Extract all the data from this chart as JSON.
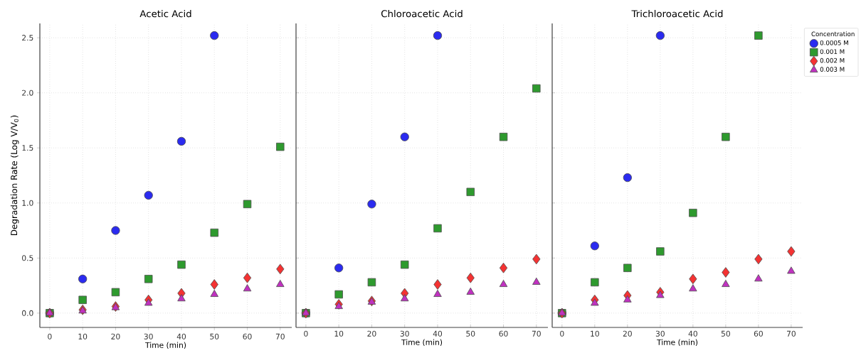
{
  "chart_data": [
    {
      "type": "scatter",
      "title": "Acetic Acid",
      "xlabel": "Time (min)",
      "ylabel": "Degradation Rate (Log V/V$_{0}$)",
      "x": [
        0,
        10,
        20,
        30,
        40,
        50,
        60,
        70
      ],
      "xlim": [
        -3,
        73.5
      ],
      "xticks": [
        0,
        10,
        20,
        30,
        40,
        50,
        60,
        70
      ],
      "ylim": [
        -0.13,
        2.63
      ],
      "yticks": [
        {
          "value": 0,
          "label": "0.0"
        },
        {
          "value": 0.5,
          "label": "0.5"
        },
        {
          "value": 1,
          "label": "1.0"
        },
        {
          "value": 1.5,
          "label": "1.5"
        },
        {
          "value": 2,
          "label": "2.0"
        },
        {
          "value": 2.5,
          "label": "2.5"
        }
      ],
      "grid": true,
      "series": [
        {
          "color": "#2b2bf0",
          "marker": "circle",
          "values": [
            0,
            0.31,
            0.75,
            1.07,
            1.56,
            2.52,
            null,
            null
          ]
        },
        {
          "color": "#2e9a2e",
          "marker": "square",
          "values": [
            0,
            0.12,
            0.19,
            0.31,
            0.44,
            0.73,
            0.99,
            1.51
          ]
        },
        {
          "color": "#f43232",
          "marker": "diamond",
          "values": [
            0,
            0.03,
            0.06,
            0.12,
            0.18,
            0.26,
            0.32,
            0.4
          ]
        },
        {
          "color": "#c031c0",
          "marker": "triangle",
          "values": [
            0,
            0.02,
            0.05,
            0.09,
            0.13,
            0.17,
            0.22,
            0.26
          ]
        }
      ]
    },
    {
      "type": "scatter",
      "title": "Chloroacetic Acid",
      "xlabel": "Time (min)",
      "x": [
        0,
        10,
        20,
        30,
        40,
        50,
        60,
        70
      ],
      "xlim": [
        -3,
        73.5
      ],
      "xticks": [
        0,
        10,
        20,
        30,
        40,
        50,
        60,
        70
      ],
      "ylim": [
        -0.13,
        2.63
      ],
      "yticks": [
        {
          "value": 0,
          "label": null
        },
        {
          "value": 0.5,
          "label": null
        },
        {
          "value": 1,
          "label": null
        },
        {
          "value": 1.5,
          "label": null
        },
        {
          "value": 2,
          "label": null
        },
        {
          "value": 2.5,
          "label": null
        }
      ],
      "grid": true,
      "tick_labels": "x",
      "series": [
        {
          "color": "#2b2bf0",
          "marker": "circle",
          "values": [
            0,
            0.41,
            0.99,
            1.6,
            2.52,
            null,
            null,
            null
          ]
        },
        {
          "color": "#2e9a2e",
          "marker": "square",
          "values": [
            0,
            0.17,
            0.28,
            0.44,
            0.77,
            1.1,
            1.6,
            2.04
          ]
        },
        {
          "color": "#f43232",
          "marker": "diamond",
          "values": [
            0,
            0.08,
            0.11,
            0.18,
            0.26,
            0.32,
            0.41,
            0.49
          ]
        },
        {
          "color": "#c031c0",
          "marker": "triangle",
          "values": [
            0,
            0.06,
            0.1,
            0.13,
            0.17,
            0.19,
            0.26,
            0.28
          ]
        }
      ]
    },
    {
      "type": "scatter",
      "title": "Trichloroacetic Acid",
      "xlabel": "Time (min)",
      "x": [
        0,
        10,
        20,
        30,
        40,
        50,
        60,
        70
      ],
      "xlim": [
        -3,
        73.5
      ],
      "xticks": [
        0,
        10,
        20,
        30,
        40,
        50,
        60,
        70
      ],
      "ylim": [
        -0.13,
        2.63
      ],
      "yticks": [
        {
          "value": 0,
          "label": null
        },
        {
          "value": 0.5,
          "label": null
        },
        {
          "value": 1,
          "label": null
        },
        {
          "value": 1.5,
          "label": null
        },
        {
          "value": 2,
          "label": null
        },
        {
          "value": 2.5,
          "label": null
        }
      ],
      "grid": true,
      "tick_labels": "x",
      "legend": "top right",
      "legend_title": "Concentration",
      "series": [
        {
          "name": "0.0005 M",
          "color": "#2b2bf0",
          "marker": "circle",
          "values": [
            0,
            0.61,
            1.23,
            2.52,
            null,
            null,
            null,
            null
          ]
        },
        {
          "name": "0.001 M",
          "color": "#2e9a2e",
          "marker": "square",
          "values": [
            0,
            0.28,
            0.41,
            0.56,
            0.91,
            1.6,
            2.52,
            null
          ]
        },
        {
          "name": "0.002 M",
          "color": "#f43232",
          "marker": "diamond",
          "values": [
            0,
            0.12,
            0.16,
            0.19,
            0.31,
            0.37,
            0.49,
            0.56
          ]
        },
        {
          "name": "0.003 M",
          "color": "#c031c0",
          "marker": "triangle",
          "values": [
            0,
            0.09,
            0.12,
            0.16,
            0.22,
            0.26,
            0.31,
            0.38
          ]
        }
      ]
    }
  ]
}
